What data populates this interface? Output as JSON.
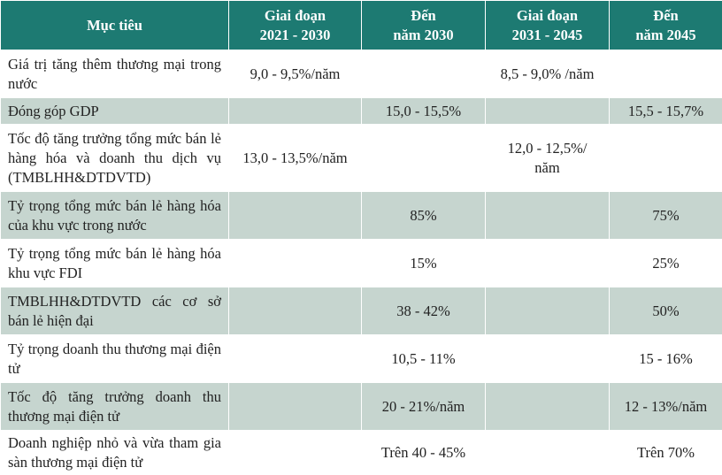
{
  "table": {
    "header": [
      [
        "Mục tiêu"
      ],
      [
        "Giai đoạn",
        "2021 - 2030"
      ],
      [
        "Đến",
        "năm 2030"
      ],
      [
        "Giai đoạn",
        "2031 - 2045"
      ],
      [
        "Đến",
        "năm 2045"
      ]
    ],
    "rows": [
      [
        "Giá trị tăng thêm thương mại trong nước",
        "9,0 - 9,5%/năm",
        null,
        "8,5 - 9,0% /năm",
        null
      ],
      [
        "Đóng góp GDP",
        null,
        "15,0 - 15,5%",
        null,
        "15,5 - 15,7%"
      ],
      [
        "Tốc độ tăng trưởng tổng mức bán lẻ hàng hóa và doanh thu dịch vụ (TMBLHH&DTDVTD)",
        "13,0 - 13,5%/năm",
        null,
        "12,0 - 12,5%/ năm",
        null
      ],
      [
        "Tỷ trọng tổng mức bán lẻ hàng hóa của khu vực trong nước",
        null,
        "85%",
        null,
        "75%"
      ],
      [
        "Tỷ trọng tổng mức bán lẻ hàng hóa khu vực FDI",
        null,
        "15%",
        null,
        "25%"
      ],
      [
        "TMBLHH&DTDVTD các cơ sở bán lẻ hiện đại",
        null,
        "38 - 42%",
        null,
        "50%"
      ],
      [
        "Tỷ trọng doanh thu thương mại điện tử",
        null,
        "10,5 - 11%",
        null,
        "15 - 16%"
      ],
      [
        "Tốc độ tăng trưởng doanh thu thương mại điện tử",
        null,
        "20 - 21%/năm",
        null,
        "12 - 13%/năm"
      ],
      [
        "Doanh nghiệp nhỏ và vừa tham gia sàn thương mại điện tử",
        null,
        "Trên 40 - 45%",
        null,
        "Trên 70%"
      ]
    ]
  }
}
